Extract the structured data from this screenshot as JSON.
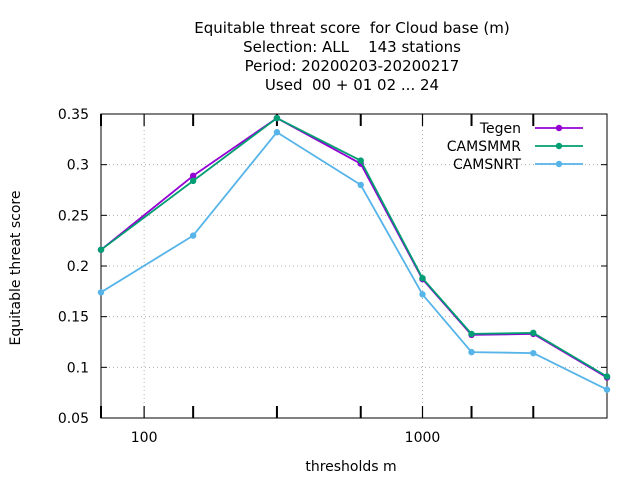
{
  "chart_data": {
    "type": "line",
    "title_lines": [
      "Equitable threat score  for Cloud base (m)",
      "Selection: ALL    143 stations",
      "Period: 20200203-20200217",
      "Used  00 + 01 02 ... 24"
    ],
    "xlabel": "thresholds m",
    "ylabel": "Equitable threat score",
    "x_scale": "log",
    "xlim": [
      70,
      4600
    ],
    "ylim": [
      0.05,
      0.35
    ],
    "x_ticks": [
      {
        "value": 100,
        "label": "100"
      },
      {
        "value": 1000,
        "label": "1000"
      }
    ],
    "x_minor_ticks": [
      70,
      150,
      300,
      600,
      1500,
      2500
    ],
    "y_ticks": [
      {
        "value": 0.05,
        "label": "0.05"
      },
      {
        "value": 0.1,
        "label": "0.1"
      },
      {
        "value": 0.15,
        "label": "0.15"
      },
      {
        "value": 0.2,
        "label": "0.2"
      },
      {
        "value": 0.25,
        "label": "0.25"
      },
      {
        "value": 0.3,
        "label": "0.3"
      },
      {
        "value": 0.35,
        "label": "0.35"
      }
    ],
    "grid": true,
    "legend_position": "top-right",
    "x": [
      70,
      150,
      300,
      600,
      1000,
      1500,
      2500,
      4600
    ],
    "series": [
      {
        "name": "Tegen",
        "color": "#9400d3",
        "values": [
          0.216,
          0.289,
          0.346,
          0.301,
          0.187,
          0.132,
          0.133,
          0.09
        ]
      },
      {
        "name": "CAMSMMR",
        "color": "#009e73",
        "values": [
          0.216,
          0.284,
          0.346,
          0.304,
          0.188,
          0.133,
          0.134,
          0.091
        ]
      },
      {
        "name": "CAMSNRT",
        "color": "#56b4e9",
        "values": [
          0.174,
          0.23,
          0.332,
          0.28,
          0.172,
          0.115,
          0.114,
          0.078
        ]
      }
    ]
  }
}
